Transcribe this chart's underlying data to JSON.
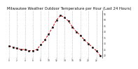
{
  "title": "Milwaukee Weather Outdoor Temperature per Hour (Last 24 Hours)",
  "hours": [
    0,
    1,
    2,
    3,
    4,
    5,
    6,
    7,
    8,
    9,
    10,
    11,
    12,
    13,
    14,
    15,
    16,
    17,
    18,
    19,
    20,
    21,
    22,
    23
  ],
  "temps": [
    28,
    27,
    26,
    25,
    25,
    24,
    24,
    25,
    29,
    33,
    38,
    44,
    50,
    54,
    52,
    49,
    44,
    40,
    37,
    33,
    30,
    27,
    24,
    20
  ],
  "line_color": "#dd0000",
  "marker_color": "#000000",
  "bg_color": "#ffffff",
  "grid_color": "#aaaaaa",
  "title_fontsize": 3.8,
  "ylim": [
    18,
    58
  ],
  "yticks": [
    20,
    25,
    30,
    35,
    40,
    45,
    50,
    55
  ],
  "xticks": [
    0,
    2,
    4,
    6,
    8,
    10,
    12,
    14,
    16,
    18,
    20,
    22
  ]
}
